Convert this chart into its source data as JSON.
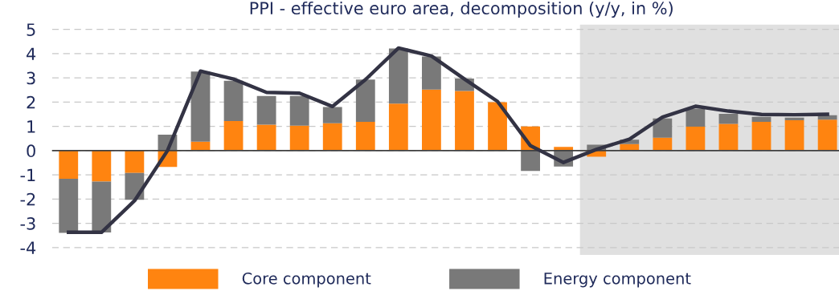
{
  "chart_data": {
    "type": "bar",
    "stacked": true,
    "title": "PPI - effective euro area, decomposition (y/y, in %)",
    "categories": [
      null,
      null,
      null,
      null,
      null,
      null,
      null,
      null,
      null,
      null,
      null,
      null,
      null,
      null,
      null,
      null,
      null,
      null,
      null,
      null,
      null,
      null,
      null,
      null
    ],
    "ylim": [
      -4.3,
      5.2
    ],
    "yticks": [
      -4,
      -3,
      -2,
      -1,
      0,
      1,
      2,
      3,
      4,
      5
    ],
    "tick_labels": "y",
    "series": [
      {
        "name": "Core component",
        "color": "#ff8410",
        "values": [
          -1.16,
          -1.28,
          -0.92,
          -0.67,
          0.37,
          1.22,
          1.07,
          1.03,
          1.13,
          1.19,
          1.94,
          2.52,
          2.46,
          2.0,
          1.0,
          0.15,
          -0.25,
          0.27,
          0.53,
          0.99,
          1.1,
          1.19,
          1.25,
          1.28
        ]
      },
      {
        "name": "Energy component",
        "color": "#797979",
        "values": [
          -2.23,
          -2.1,
          -1.11,
          0.66,
          2.89,
          1.66,
          1.18,
          1.22,
          0.67,
          1.74,
          2.27,
          1.36,
          0.51,
          0.0,
          -0.84,
          -0.66,
          0.24,
          0.18,
          0.8,
          0.74,
          0.42,
          0.2,
          0.11,
          0.18
        ]
      },
      {
        "type": "line",
        "color": "#333344",
        "values": [
          -3.37,
          -3.37,
          -2.07,
          0.0,
          3.28,
          2.95,
          2.4,
          2.37,
          1.82,
          2.93,
          4.23,
          3.9,
          2.95,
          2.03,
          0.2,
          -0.49,
          0.05,
          0.47,
          1.38,
          1.83,
          1.63,
          1.49,
          1.48,
          1.5
        ]
      }
    ],
    "ref_lines": [
      {
        "axis": "y",
        "value": 0,
        "color": "#404040",
        "line_style": "solid"
      }
    ],
    "grid": "y",
    "legend": "bottom",
    "line_style": "solid",
    "marker": "none"
  }
}
